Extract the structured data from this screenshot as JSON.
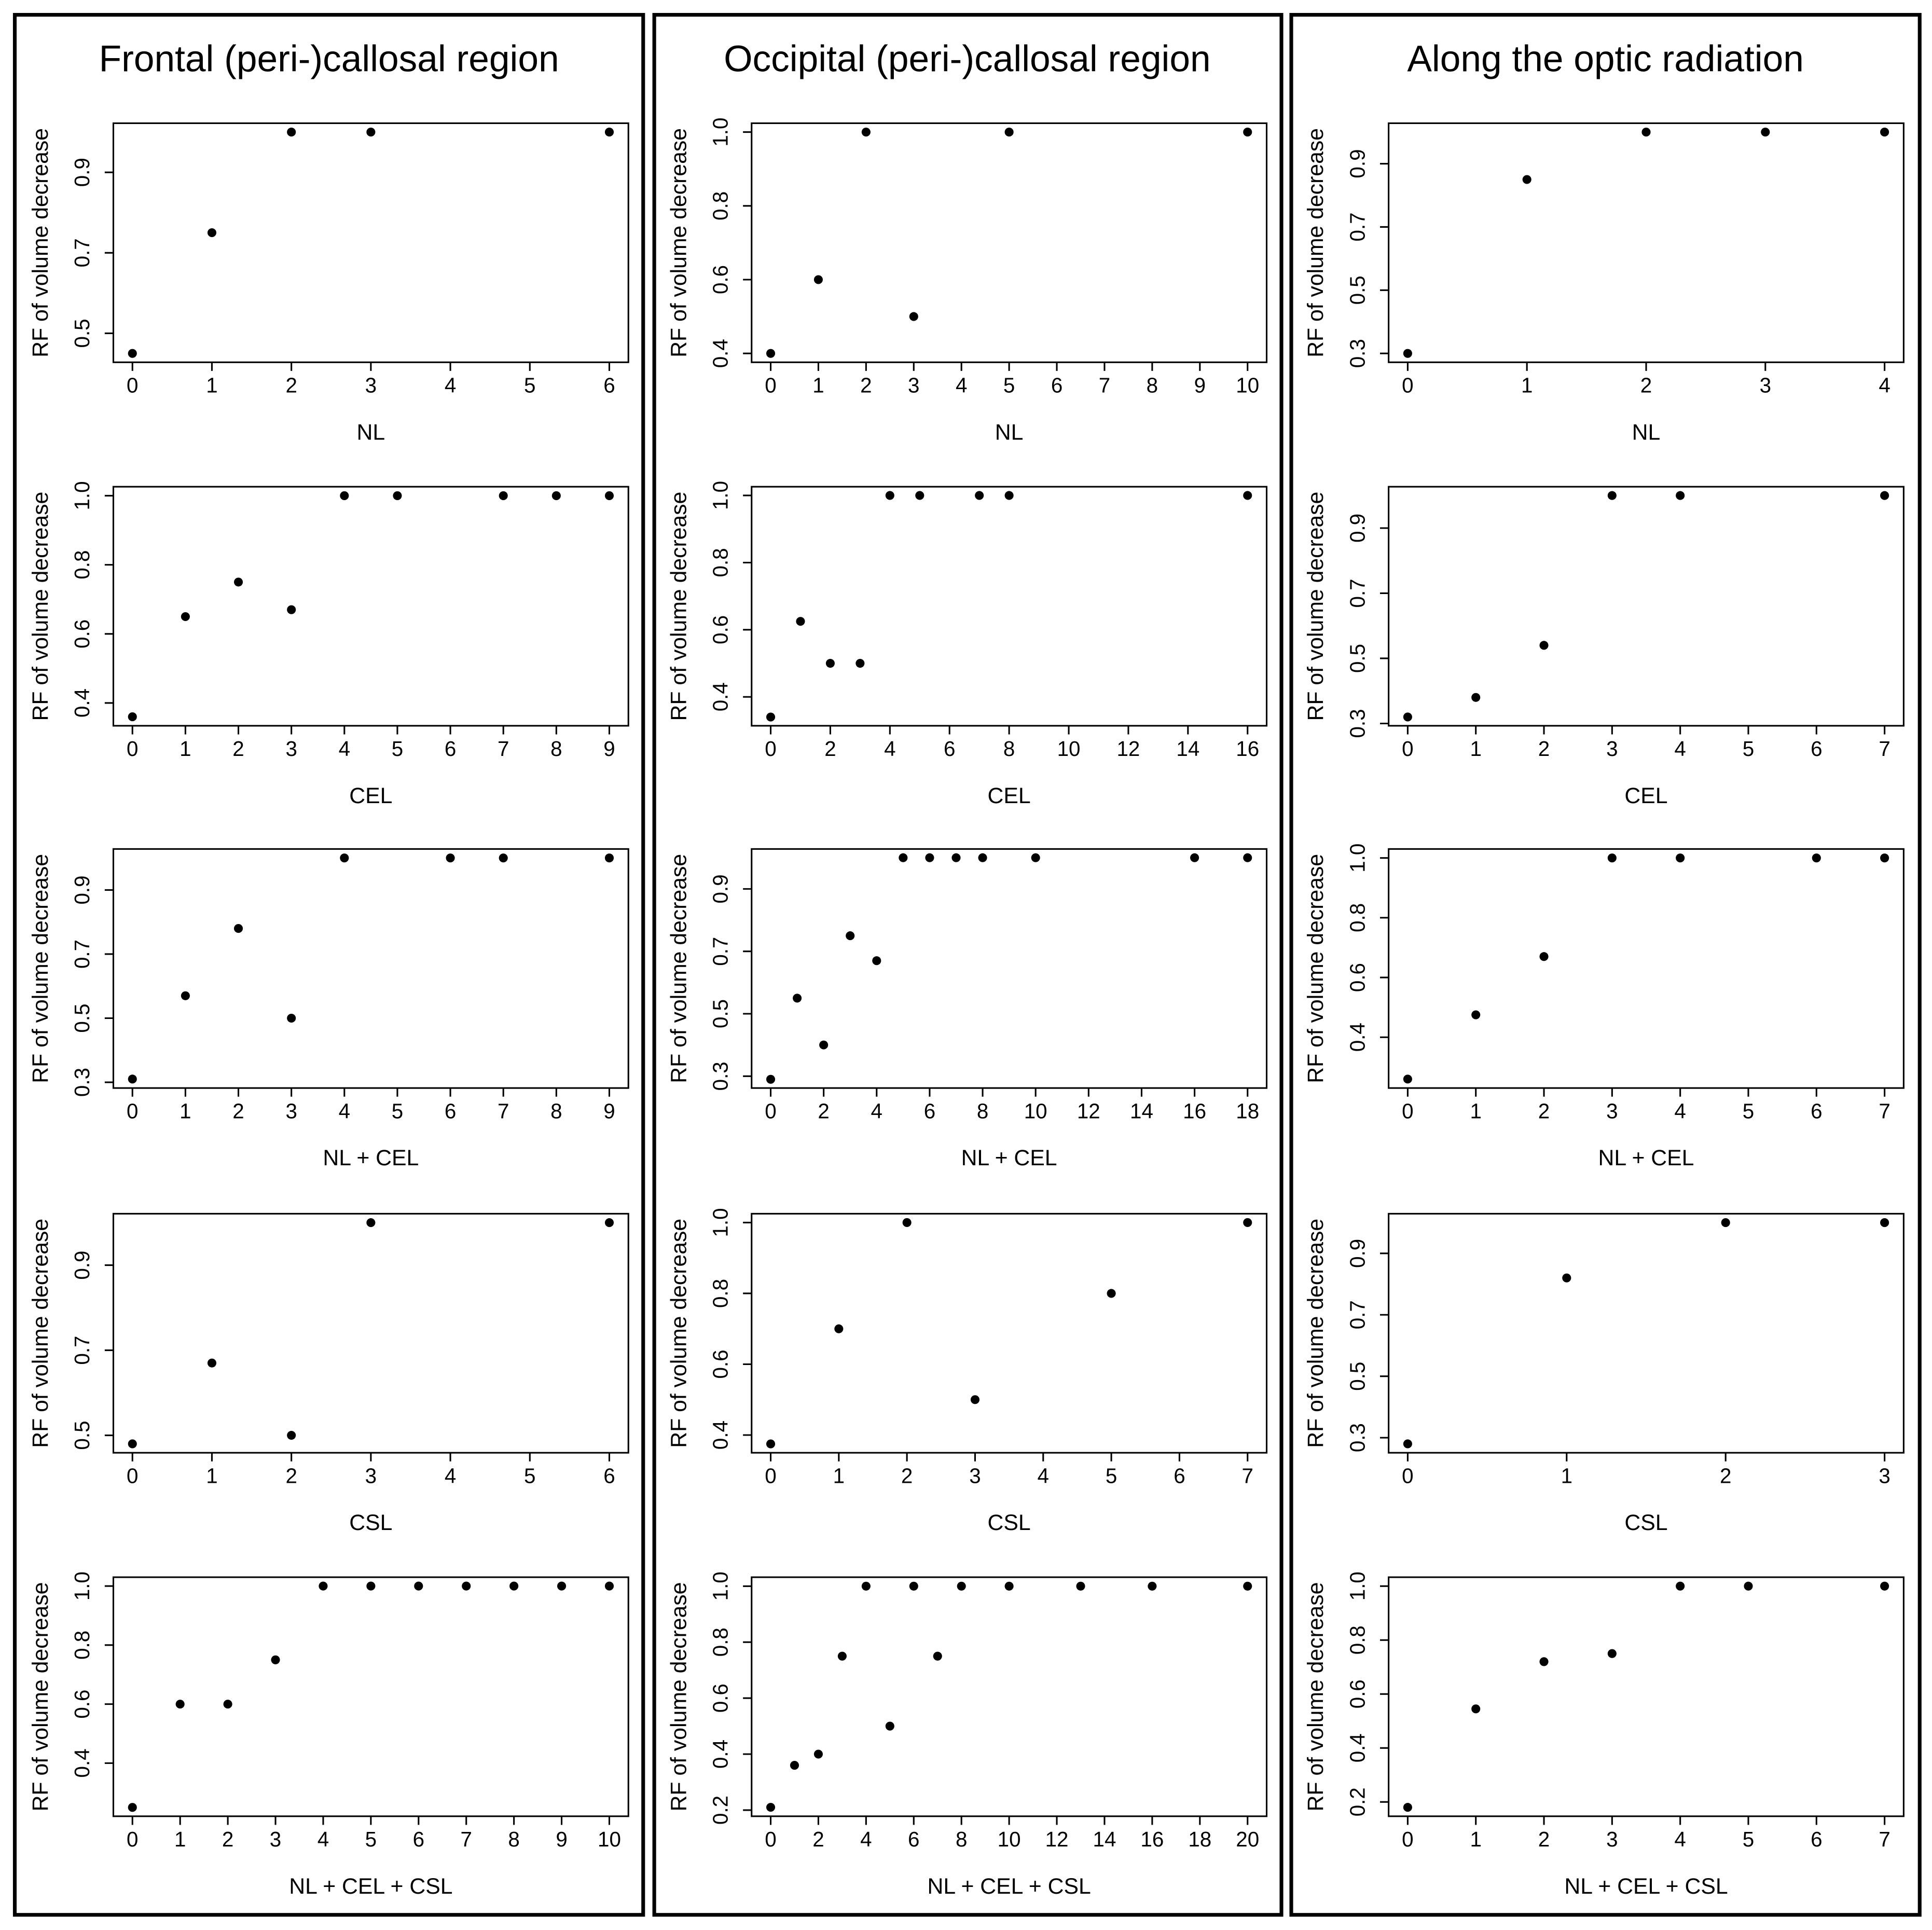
{
  "chart_data": [
    {
      "type": "scatter",
      "title": "Frontal (peri-)callosal region",
      "xlabel": "NL",
      "ylabel": "RF of volume decrease",
      "x": [
        0,
        1,
        2,
        3,
        6
      ],
      "values": [
        0.45,
        0.75,
        1.0,
        1.0,
        1.0
      ],
      "xlim": [
        -0.24,
        6.24
      ],
      "ylim": [
        0.428,
        1.022
      ],
      "xticks": [
        0,
        1,
        2,
        3,
        4,
        5,
        6
      ],
      "yticks": [
        0.5,
        0.7,
        0.9
      ]
    },
    {
      "type": "scatter",
      "xlabel": "CEL",
      "ylabel": "RF of volume decrease",
      "x": [
        0,
        1,
        2,
        3,
        4,
        5,
        7,
        8,
        9
      ],
      "values": [
        0.36,
        0.65,
        0.75,
        0.67,
        1.0,
        1.0,
        1.0,
        1.0,
        1.0
      ],
      "xlim": [
        -0.36,
        9.36
      ],
      "ylim": [
        0.334,
        1.026
      ],
      "xticks": [
        0,
        1,
        2,
        3,
        4,
        5,
        6,
        7,
        8,
        9
      ],
      "yticks": [
        0.4,
        0.6,
        0.8,
        {
          "value": 1.0,
          "label": "1.0"
        }
      ]
    },
    {
      "type": "scatter",
      "xlabel": "NL + CEL",
      "ylabel": "RF of volume decrease",
      "x": [
        0,
        1,
        2,
        3,
        4,
        6,
        7,
        9
      ],
      "values": [
        0.31,
        0.57,
        0.78,
        0.5,
        1.0,
        1.0,
        1.0,
        1.0
      ],
      "xlim": [
        -0.36,
        9.36
      ],
      "ylim": [
        0.282,
        1.028
      ],
      "xticks": [
        0,
        1,
        2,
        3,
        4,
        5,
        6,
        7,
        8,
        9
      ],
      "yticks": [
        0.3,
        0.5,
        0.7,
        0.9
      ]
    },
    {
      "type": "scatter",
      "xlabel": "CSL",
      "ylabel": "RF of volume decrease",
      "x": [
        0,
        1,
        2,
        3,
        6
      ],
      "values": [
        0.48,
        0.67,
        0.5,
        1.0,
        1.0
      ],
      "xlim": [
        -0.24,
        6.24
      ],
      "ylim": [
        0.459,
        1.021
      ],
      "xticks": [
        0,
        1,
        2,
        3,
        4,
        5,
        6
      ],
      "yticks": [
        0.5,
        0.7,
        0.9
      ]
    },
    {
      "type": "scatter",
      "xlabel": "NL + CEL + CSL",
      "ylabel": "RF of volume decrease",
      "x": [
        0,
        1,
        2,
        3,
        4,
        5,
        6,
        7,
        8,
        9,
        10
      ],
      "values": [
        0.25,
        0.6,
        0.6,
        0.75,
        1.0,
        1.0,
        1.0,
        1.0,
        1.0,
        1.0,
        1.0
      ],
      "xlim": [
        -0.4,
        10.4
      ],
      "ylim": [
        0.22,
        1.03
      ],
      "xticks": [
        0,
        1,
        2,
        3,
        4,
        5,
        6,
        7,
        8,
        9,
        10
      ],
      "yticks": [
        0.4,
        0.6,
        0.8,
        {
          "value": 1.0,
          "label": "1.0"
        }
      ]
    },
    {
      "type": "scatter",
      "title": "Occipital (peri-)callosal region",
      "xlabel": "NL",
      "ylabel": "RF of volume decrease",
      "x": [
        0,
        1,
        2,
        3,
        5,
        10
      ],
      "values": [
        0.4,
        0.6,
        1.0,
        0.5,
        1.0,
        1.0
      ],
      "xlim": [
        -0.4,
        10.4
      ],
      "ylim": [
        0.376,
        1.024
      ],
      "xticks": [
        0,
        1,
        2,
        3,
        4,
        5,
        6,
        7,
        8,
        9,
        10
      ],
      "yticks": [
        0.4,
        0.6,
        0.8,
        {
          "value": 1.0,
          "label": "1.0"
        }
      ]
    },
    {
      "type": "scatter",
      "xlabel": "CEL",
      "ylabel": "RF of volume decrease",
      "x": [
        0,
        1,
        2,
        3,
        4,
        5,
        7,
        8,
        16
      ],
      "values": [
        0.34,
        0.625,
        0.5,
        0.5,
        1.0,
        1.0,
        1.0,
        1.0,
        1.0
      ],
      "xlim": [
        -0.64,
        16.64
      ],
      "ylim": [
        0.314,
        1.026
      ],
      "xticks": [
        0,
        2,
        4,
        6,
        8,
        10,
        12,
        14,
        16
      ],
      "yticks": [
        0.4,
        0.6,
        0.8,
        {
          "value": 1.0,
          "label": "1.0"
        }
      ]
    },
    {
      "type": "scatter",
      "xlabel": "NL + CEL",
      "ylabel": "RF of volume decrease",
      "x": [
        0,
        1,
        2,
        3,
        4,
        5,
        6,
        7,
        8,
        10,
        16,
        18
      ],
      "values": [
        0.29,
        0.55,
        0.4,
        0.75,
        0.67,
        1.0,
        1.0,
        1.0,
        1.0,
        1.0,
        1.0,
        1.0
      ],
      "xlim": [
        -0.72,
        18.72
      ],
      "ylim": [
        0.262,
        1.028
      ],
      "xticks": [
        0,
        2,
        4,
        6,
        8,
        10,
        12,
        14,
        16,
        18
      ],
      "yticks": [
        0.3,
        0.5,
        0.7,
        0.9
      ]
    },
    {
      "type": "scatter",
      "xlabel": "CSL",
      "ylabel": "RF of volume decrease",
      "x": [
        0,
        1,
        2,
        3,
        5,
        7
      ],
      "values": [
        0.375,
        0.7,
        1.0,
        0.5,
        0.8,
        1.0
      ],
      "xlim": [
        -0.28,
        7.28
      ],
      "ylim": [
        0.35,
        1.025
      ],
      "xticks": [
        0,
        1,
        2,
        3,
        4,
        5,
        6,
        7
      ],
      "yticks": [
        0.4,
        0.6,
        0.8,
        {
          "value": 1.0,
          "label": "1.0"
        }
      ]
    },
    {
      "type": "scatter",
      "xlabel": "NL + CEL + CSL",
      "ylabel": "RF of volume decrease",
      "x": [
        0,
        1,
        2,
        3,
        4,
        5,
        6,
        7,
        8,
        10,
        13,
        16,
        20
      ],
      "values": [
        0.21,
        0.36,
        0.4,
        0.75,
        1.0,
        0.5,
        1.0,
        0.75,
        1.0,
        1.0,
        1.0,
        1.0,
        1.0
      ],
      "xlim": [
        -0.8,
        20.8
      ],
      "ylim": [
        0.178,
        1.032
      ],
      "xticks": [
        0,
        2,
        4,
        6,
        8,
        10,
        12,
        14,
        16,
        18,
        20
      ],
      "yticks": [
        0.2,
        0.4,
        0.6,
        0.8,
        {
          "value": 1.0,
          "label": "1.0"
        }
      ]
    },
    {
      "type": "scatter",
      "title": "Along the optic radiation",
      "xlabel": "NL",
      "ylabel": "RF of volume decrease",
      "x": [
        0,
        1,
        2,
        3,
        4
      ],
      "values": [
        0.3,
        0.85,
        1.0,
        1.0,
        1.0
      ],
      "xlim": [
        -0.16,
        4.16
      ],
      "ylim": [
        0.272,
        1.028
      ],
      "xticks": [
        0,
        1,
        2,
        3,
        4
      ],
      "yticks": [
        0.3,
        0.5,
        0.7,
        0.9
      ]
    },
    {
      "type": "scatter",
      "xlabel": "CEL",
      "ylabel": "RF of volume decrease",
      "x": [
        0,
        1,
        2,
        3,
        4,
        7
      ],
      "values": [
        0.32,
        0.38,
        0.54,
        1.0,
        1.0,
        1.0
      ],
      "xlim": [
        -0.28,
        7.28
      ],
      "ylim": [
        0.293,
        1.027
      ],
      "xticks": [
        0,
        1,
        2,
        3,
        4,
        5,
        6,
        7
      ],
      "yticks": [
        0.3,
        0.5,
        0.7,
        0.9
      ]
    },
    {
      "type": "scatter",
      "xlabel": "NL + CEL",
      "ylabel": "RF of volume decrease",
      "x": [
        0,
        1,
        2,
        3,
        4,
        6,
        7
      ],
      "values": [
        0.26,
        0.475,
        0.67,
        1.0,
        1.0,
        1.0,
        1.0
      ],
      "xlim": [
        -0.28,
        7.28
      ],
      "ylim": [
        0.23,
        1.03
      ],
      "xticks": [
        0,
        1,
        2,
        3,
        4,
        5,
        6,
        7
      ],
      "yticks": [
        0.4,
        0.6,
        0.8,
        {
          "value": 1.0,
          "label": "1.0"
        }
      ]
    },
    {
      "type": "scatter",
      "xlabel": "CSL",
      "ylabel": "RF of volume decrease",
      "x": [
        0,
        1,
        2,
        3
      ],
      "values": [
        0.28,
        0.82,
        1.0,
        1.0
      ],
      "xlim": [
        -0.12,
        3.12
      ],
      "ylim": [
        0.251,
        1.029
      ],
      "xticks": [
        0,
        1,
        2,
        3
      ],
      "yticks": [
        0.3,
        0.5,
        0.7,
        0.9
      ]
    },
    {
      "type": "scatter",
      "xlabel": "NL + CEL + CSL",
      "ylabel": "RF of volume decrease",
      "x": [
        0,
        1,
        2,
        3,
        4,
        5,
        7
      ],
      "values": [
        0.18,
        0.545,
        0.72,
        0.75,
        1.0,
        1.0,
        1.0
      ],
      "xlim": [
        -0.28,
        7.28
      ],
      "ylim": [
        0.147,
        1.033
      ],
      "xticks": [
        0,
        1,
        2,
        3,
        4,
        5,
        6,
        7
      ],
      "yticks": [
        0.2,
        0.4,
        0.6,
        0.8,
        {
          "value": 1.0,
          "label": "1.0"
        }
      ]
    }
  ]
}
